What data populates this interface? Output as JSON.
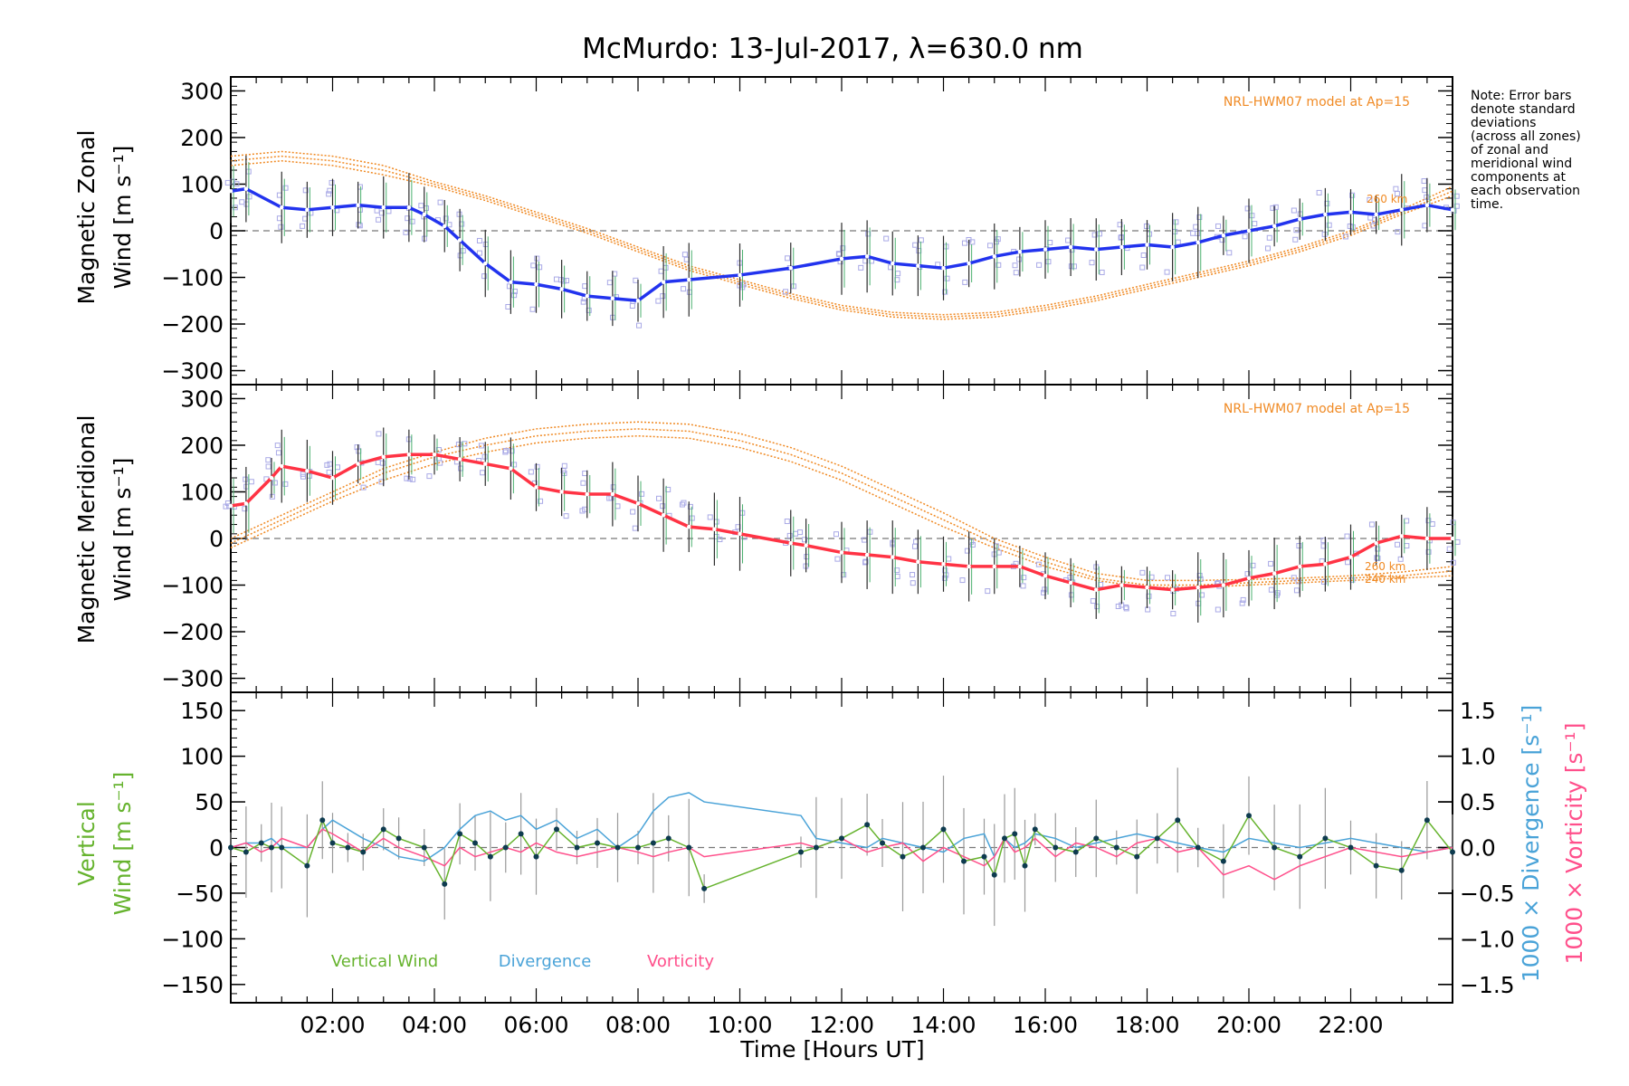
{
  "title": "McMurdo: 13-Jul-2017, λ=630.0 nm",
  "note": [
    "Note: Error bars",
    "denote standard",
    "deviations",
    "(across all zones)",
    "of zonal and",
    "meridional wind",
    "components at",
    "each observation",
    "time."
  ],
  "xlabel": "Time [Hours UT]",
  "xticks": [
    "02:00",
    "04:00",
    "06:00",
    "08:00",
    "10:00",
    "12:00",
    "14:00",
    "16:00",
    "18:00",
    "20:00",
    "22:00"
  ],
  "colors": {
    "zonal": "#2233ee",
    "meridional": "#ff3344",
    "model": "#f08a24",
    "vertical": "#66b32e",
    "divergence": "#4aa3d8",
    "vorticity": "#ff4f8b",
    "scatter": "#a9a9e6"
  },
  "chart_data": [
    {
      "type": "line",
      "name": "zonal",
      "ylabel_line1": "Magnetic Zonal",
      "ylabel_line2": "Wind [m s⁻¹]",
      "ylim": [
        -330,
        330
      ],
      "yticks": [
        "300",
        "200",
        "100",
        "0",
        "−100",
        "−200",
        "−300"
      ],
      "model_label": "NRL-HWM07 model at Ap=15",
      "altitude_labels": [
        "260 km"
      ],
      "x": [
        0.0,
        0.3,
        1.0,
        1.5,
        2.0,
        2.5,
        3.0,
        3.5,
        3.8,
        4.2,
        4.5,
        5.0,
        5.5,
        6.0,
        6.5,
        7.0,
        7.5,
        8.0,
        8.5,
        9.0,
        10.0,
        11.0,
        12.0,
        12.5,
        13.0,
        13.5,
        14.0,
        14.5,
        15.0,
        15.5,
        16.0,
        16.5,
        17.0,
        17.5,
        18.0,
        18.5,
        19.0,
        19.5,
        20.0,
        20.5,
        21.0,
        21.5,
        22.0,
        22.5,
        23.0,
        23.5,
        24.0
      ],
      "values": [
        85,
        90,
        50,
        45,
        50,
        55,
        50,
        50,
        35,
        10,
        -20,
        -70,
        -110,
        -115,
        -125,
        -140,
        -145,
        -150,
        -110,
        -105,
        -95,
        -80,
        -60,
        -55,
        -70,
        -75,
        -80,
        -70,
        -55,
        -45,
        -40,
        -35,
        -40,
        -35,
        -30,
        -35,
        -25,
        -10,
        0,
        10,
        25,
        35,
        40,
        35,
        45,
        55,
        45
      ],
      "model_x": [
        0,
        1,
        2,
        3,
        4,
        5,
        6,
        7,
        8,
        9,
        10,
        11,
        12,
        13,
        14,
        15,
        16,
        17,
        18,
        19,
        20,
        21,
        22,
        23,
        24
      ],
      "model_values": [
        150,
        160,
        150,
        130,
        100,
        70,
        35,
        0,
        -40,
        -80,
        -110,
        -140,
        -165,
        -180,
        -185,
        -180,
        -165,
        -145,
        -120,
        -95,
        -70,
        -40,
        -5,
        40,
        85
      ],
      "model_values_b": [
        140,
        150,
        140,
        120,
        95,
        65,
        30,
        -5,
        -45,
        -85,
        -115,
        -145,
        -170,
        -185,
        -190,
        -185,
        -170,
        -150,
        -125,
        -100,
        -75,
        -45,
        -10,
        35,
        75
      ],
      "model_values_c": [
        160,
        170,
        160,
        140,
        105,
        75,
        40,
        5,
        -35,
        -75,
        -105,
        -135,
        -160,
        -175,
        -180,
        -175,
        -160,
        -140,
        -115,
        -90,
        -65,
        -35,
        0,
        45,
        95
      ]
    },
    {
      "type": "line",
      "name": "meridional",
      "ylabel_line1": "Magnetic Meridional",
      "ylabel_line2": "Wind [m s⁻¹]",
      "ylim": [
        -330,
        330
      ],
      "yticks": [
        "300",
        "200",
        "100",
        "0",
        "−100",
        "−200",
        "−300"
      ],
      "model_label": "NRL-HWM07 model at Ap=15",
      "altitude_labels": [
        "260 km",
        "240 km"
      ],
      "x": [
        0.0,
        0.3,
        0.8,
        1.0,
        1.5,
        2.0,
        2.5,
        3.0,
        3.5,
        4.0,
        4.5,
        5.0,
        5.5,
        6.0,
        6.5,
        7.0,
        7.5,
        8.0,
        8.5,
        9.0,
        9.5,
        10.0,
        11.0,
        11.3,
        12.0,
        12.5,
        13.0,
        13.5,
        14.0,
        14.5,
        15.0,
        15.5,
        16.0,
        16.5,
        17.0,
        17.5,
        18.0,
        18.5,
        19.0,
        19.5,
        20.0,
        20.5,
        21.0,
        21.5,
        22.0,
        22.5,
        23.0,
        23.5,
        24.0
      ],
      "values": [
        70,
        75,
        130,
        155,
        145,
        130,
        160,
        175,
        180,
        180,
        170,
        160,
        150,
        110,
        100,
        95,
        95,
        75,
        50,
        25,
        20,
        10,
        -10,
        -15,
        -30,
        -35,
        -40,
        -50,
        -55,
        -60,
        -60,
        -60,
        -80,
        -95,
        -110,
        -100,
        -105,
        -110,
        -105,
        -100,
        -85,
        -75,
        -60,
        -55,
        -40,
        -10,
        5,
        0,
        0
      ],
      "model_x": [
        0,
        1,
        2,
        3,
        4,
        5,
        6,
        7,
        8,
        9,
        10,
        11,
        12,
        13,
        14,
        15,
        16,
        17,
        18,
        19,
        20,
        21,
        22,
        23,
        24
      ],
      "model_values": [
        -10,
        40,
        90,
        140,
        175,
        200,
        220,
        230,
        235,
        230,
        210,
        180,
        140,
        90,
        40,
        -10,
        -50,
        -85,
        -100,
        -100,
        -95,
        -90,
        -85,
        -80,
        -70
      ],
      "model_values_b": [
        -20,
        30,
        80,
        125,
        160,
        185,
        205,
        215,
        220,
        215,
        195,
        165,
        125,
        75,
        25,
        -20,
        -60,
        -90,
        -105,
        -105,
        -100,
        -95,
        -90,
        -85,
        -80
      ],
      "model_values_c": [
        0,
        50,
        100,
        150,
        185,
        215,
        235,
        245,
        250,
        245,
        225,
        195,
        155,
        105,
        55,
        0,
        -40,
        -75,
        -90,
        -90,
        -88,
        -85,
        -80,
        -72,
        -60
      ]
    },
    {
      "type": "line",
      "name": "vertical",
      "ylabel_line1": "Vertical",
      "ylabel_line2": "Wind [m s⁻¹]",
      "ylim": [
        -170,
        170
      ],
      "yticks": [
        "150",
        "100",
        "50",
        "0",
        "−50",
        "−100",
        "−150"
      ],
      "y2lim": [
        -1.7,
        1.7
      ],
      "y2ticks": [
        "1.5",
        "1.0",
        "0.5",
        "0.0",
        "−0.5",
        "−1.0",
        "−1.5"
      ],
      "y2label_divergence": "1000 × Divergence [s⁻¹]",
      "y2label_vorticity": "1000 × Vorticity [s⁻¹]",
      "legend": [
        "Vertical Wind",
        "Divergence",
        "Vorticity"
      ],
      "x": [
        0.0,
        0.3,
        0.6,
        0.8,
        1.0,
        1.5,
        1.8,
        2.0,
        2.3,
        2.6,
        3.0,
        3.3,
        3.8,
        4.2,
        4.5,
        4.8,
        5.1,
        5.4,
        5.7,
        6.0,
        6.4,
        6.8,
        7.2,
        7.6,
        8.0,
        8.3,
        8.6,
        9.0,
        9.3,
        11.2,
        11.5,
        12.0,
        12.5,
        12.8,
        13.2,
        13.6,
        14.0,
        14.4,
        14.8,
        15.0,
        15.2,
        15.4,
        15.6,
        15.8,
        16.2,
        16.6,
        17.0,
        17.4,
        17.8,
        18.2,
        18.6,
        19.0,
        19.5,
        20.0,
        20.5,
        21.0,
        21.5,
        22.0,
        22.5,
        23.0,
        23.5,
        24.0
      ],
      "values": [
        0,
        -5,
        5,
        0,
        0,
        -20,
        30,
        5,
        0,
        -5,
        20,
        10,
        0,
        -40,
        15,
        5,
        -10,
        0,
        15,
        -10,
        20,
        0,
        5,
        0,
        0,
        5,
        10,
        0,
        -45,
        -5,
        0,
        10,
        25,
        5,
        -10,
        0,
        20,
        -15,
        -10,
        -30,
        10,
        15,
        -20,
        20,
        0,
        -5,
        10,
        0,
        -10,
        10,
        30,
        0,
        -15,
        35,
        0,
        -10,
        10,
        0,
        -20,
        -25,
        30,
        -5
      ],
      "divergence": [
        0.0,
        0.05,
        0.05,
        0.1,
        0.0,
        0.0,
        0.2,
        0.3,
        0.2,
        0.1,
        0.0,
        -0.1,
        -0.15,
        0.0,
        0.2,
        0.35,
        0.4,
        0.3,
        0.35,
        0.2,
        0.3,
        0.1,
        0.2,
        0.0,
        0.15,
        0.4,
        0.55,
        0.6,
        0.5,
        0.35,
        0.1,
        0.05,
        0.0,
        0.1,
        0.05,
        0.0,
        -0.05,
        0.1,
        0.15,
        -0.1,
        0.1,
        0.0,
        0.05,
        0.15,
        0.1,
        0.0,
        0.05,
        0.1,
        0.15,
        0.1,
        0.05,
        0.0,
        -0.05,
        0.1,
        0.05,
        0.0,
        0.05,
        0.1,
        0.05,
        0.0,
        -0.05,
        0.0
      ],
      "vorticity": [
        0.0,
        0.05,
        -0.05,
        0.0,
        0.1,
        0.0,
        0.2,
        0.15,
        0.05,
        -0.05,
        0.1,
        0.0,
        -0.1,
        -0.2,
        0.0,
        -0.1,
        -0.05,
        0.0,
        -0.05,
        0.05,
        -0.05,
        -0.1,
        -0.05,
        0.0,
        -0.05,
        -0.1,
        -0.05,
        0.0,
        -0.1,
        0.05,
        0.0,
        0.1,
        -0.05,
        0.0,
        0.05,
        -0.15,
        0.0,
        -0.1,
        -0.2,
        -0.1,
        0.1,
        -0.05,
        0.0,
        0.1,
        -0.1,
        0.05,
        0.0,
        -0.1,
        0.05,
        0.1,
        -0.05,
        0.0,
        -0.3,
        -0.2,
        -0.35,
        -0.2,
        -0.1,
        0.0,
        -0.05,
        -0.1,
        -0.05,
        0.0
      ]
    }
  ]
}
